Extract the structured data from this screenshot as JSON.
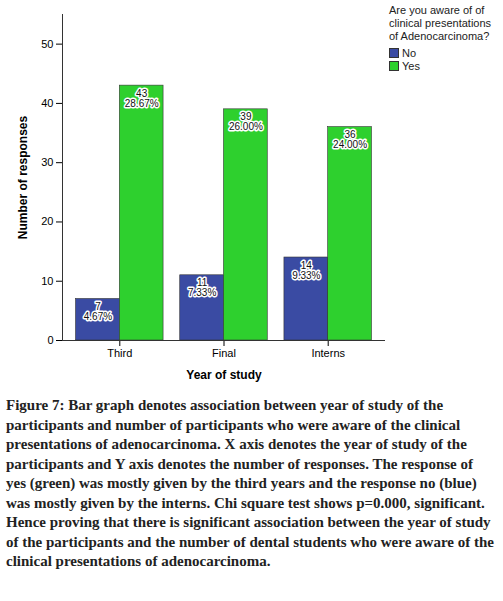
{
  "chart_data": {
    "type": "bar",
    "x_label": "Year of study",
    "y_label": "Number of responses",
    "legend_title": "Are you aware of of clinical presentations of Adenocarcinoma?",
    "caption": "Figure 7: Bar graph denotes association between year of study of the participants and number of participants who were aware of the clinical presentations of adenocarcinoma. X axis denotes the year of study of the participants and Y axis denotes the number of responses. The response of yes (green) was mostly given by the third years and the response no (blue) was mostly given by the interns. Chi square test shows p=0.000, significant. Hence proving that there is significant association between the year of study of the participants and the number of dental students who were aware of the clinical presentations of adenocarcinoma.",
    "categories": [
      "Third",
      "Final",
      "Interns"
    ],
    "series": [
      {
        "name": "No",
        "color": "#3a4ba3",
        "values": [
          7,
          11,
          14
        ],
        "value_labels": [
          "7\n4.67%",
          "11\n7.33%",
          "14\n9.33%"
        ]
      },
      {
        "name": "Yes",
        "color": "#2ed02e",
        "values": [
          43,
          39,
          36
        ],
        "value_labels": [
          "43\n28.67%",
          "39\n26.00%",
          "36\n24.00%"
        ]
      }
    ],
    "ylim": [
      0,
      55
    ],
    "yticks": [
      0,
      10,
      20,
      30,
      40,
      50
    ],
    "data_labels": true,
    "legend": "upper right"
  }
}
